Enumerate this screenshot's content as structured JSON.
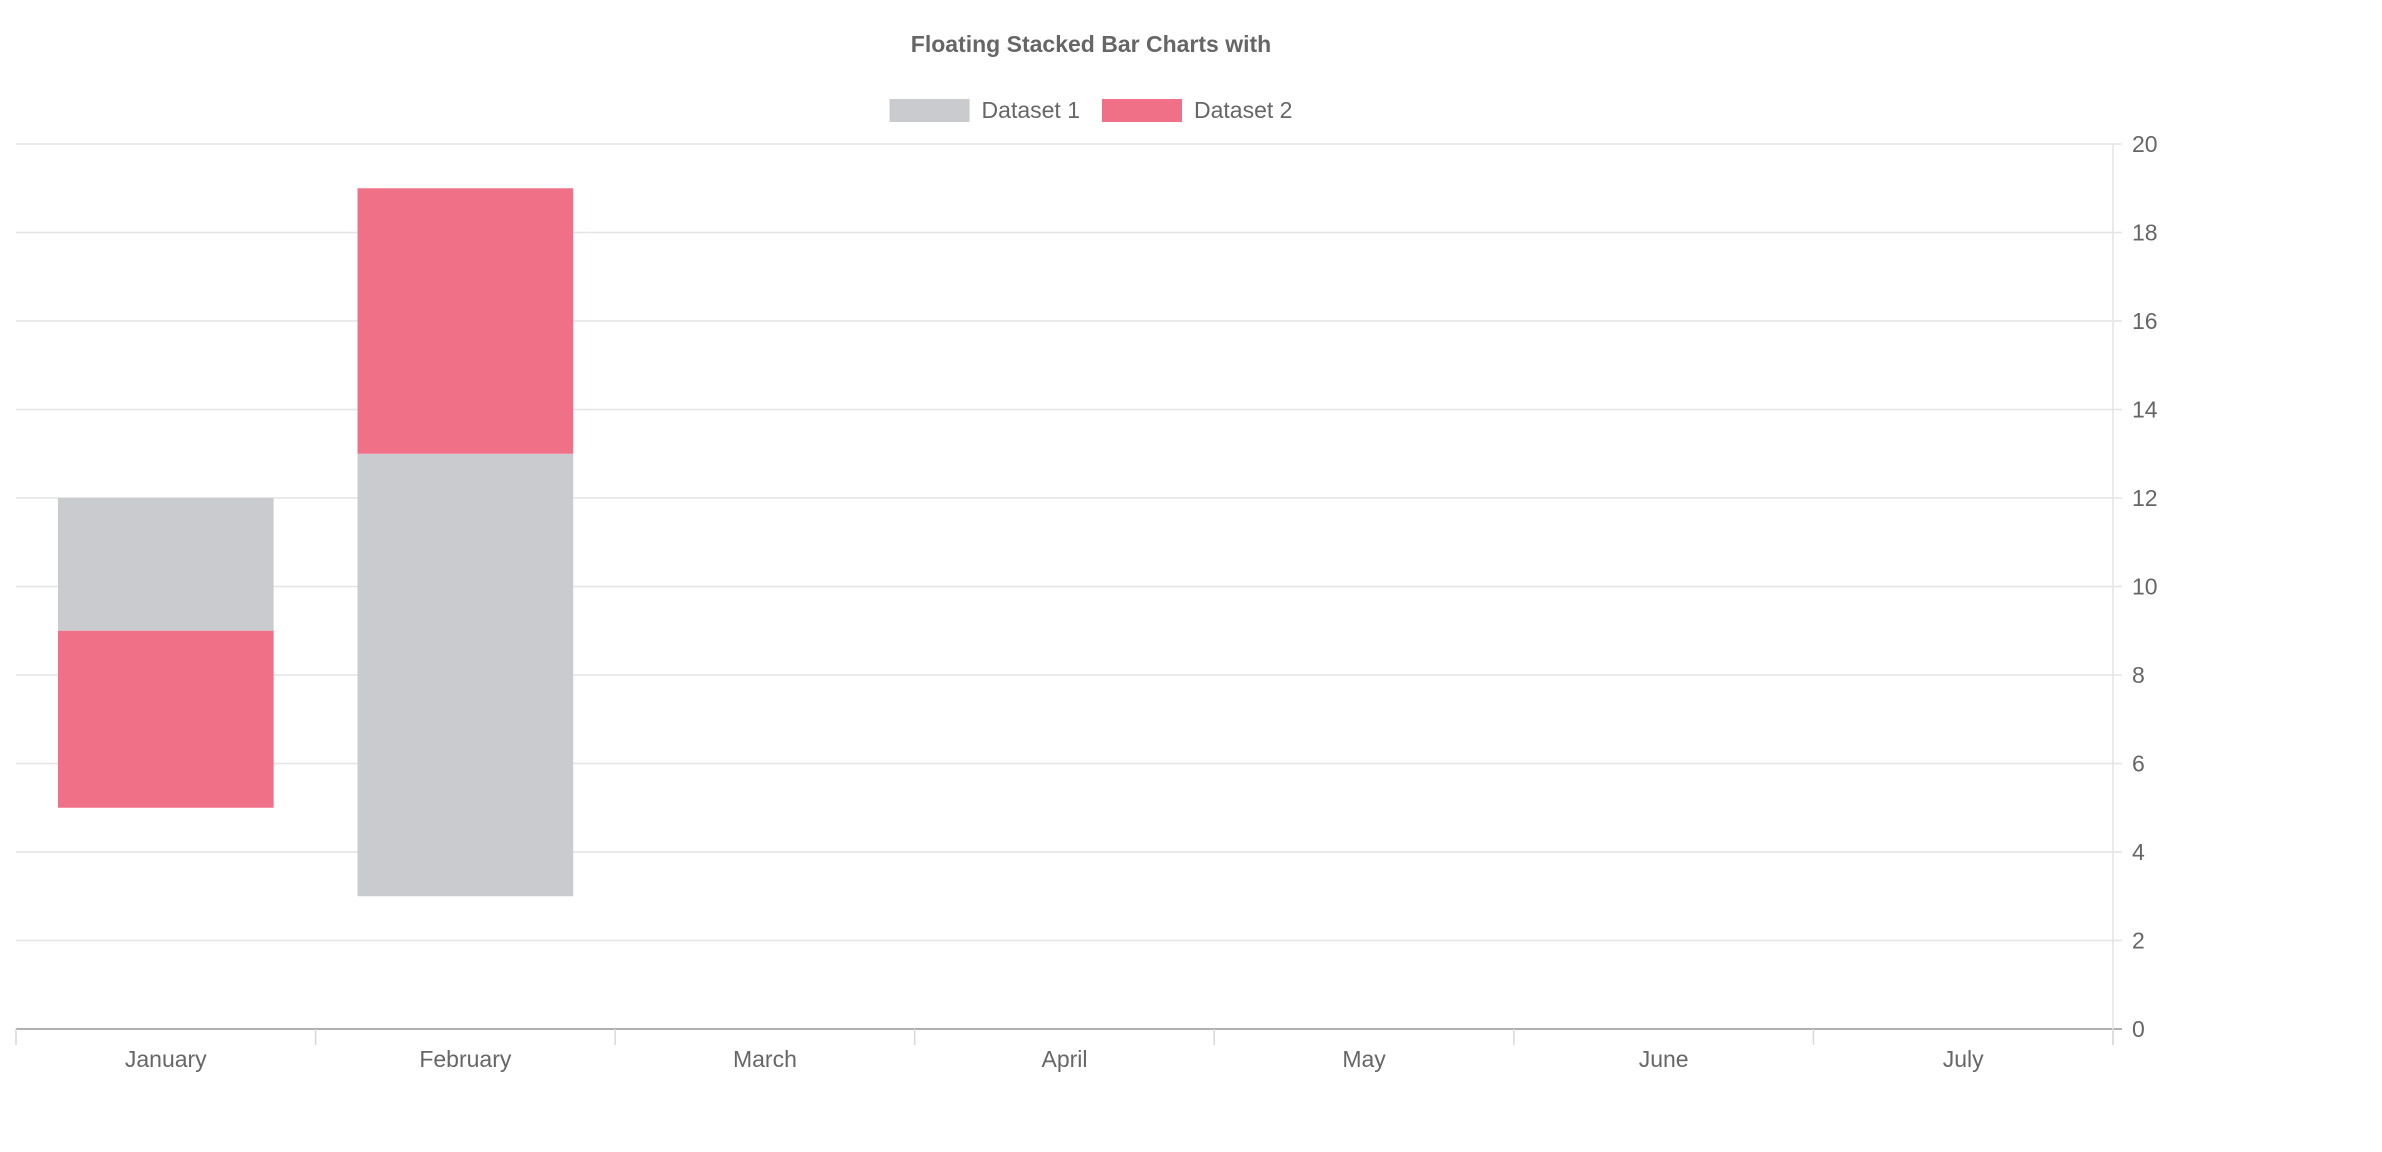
{
  "chart_data": {
    "type": "bar",
    "title": "Floating Stacked Bar Charts with",
    "stacked": true,
    "floating": true,
    "categories": [
      "January",
      "February",
      "March",
      "April",
      "May",
      "June",
      "July"
    ],
    "legend_position": "top",
    "y_axis_position": "right",
    "grid": true,
    "ylim": [
      0,
      20
    ],
    "yticks": [
      0,
      2,
      4,
      6,
      8,
      10,
      12,
      14,
      16,
      18,
      20
    ],
    "series": [
      {
        "name": "Dataset 1",
        "color": "#c9cbcf",
        "ranges": [
          [
            9,
            12
          ],
          [
            3,
            13
          ],
          null,
          null,
          null,
          null,
          null
        ]
      },
      {
        "name": "Dataset 2",
        "color": "#f07088",
        "ranges": [
          [
            5,
            9
          ],
          [
            13,
            19
          ],
          null,
          null,
          null,
          null,
          null
        ]
      }
    ]
  }
}
